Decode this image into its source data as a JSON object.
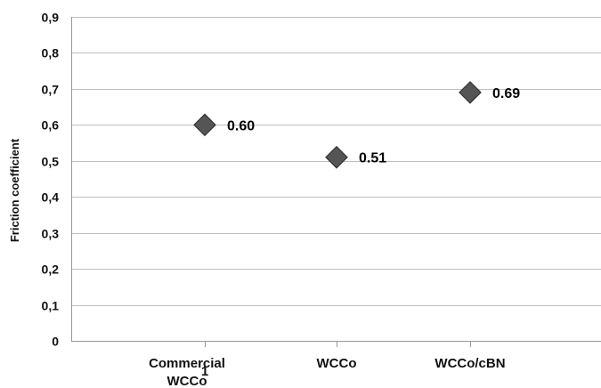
{
  "chart_data": {
    "type": "scatter",
    "title": "",
    "xlabel": "",
    "ylabel": "Friction coefficient",
    "categories": [
      "Commercial WCCo",
      "WCCo",
      "WCCo/cBN"
    ],
    "category_lines": [
      [
        "Commercial",
        "WCCo"
      ],
      [
        "WCCo"
      ],
      [
        "WCCo/cBN"
      ]
    ],
    "values": [
      0.6,
      0.51,
      0.69
    ],
    "data_labels": [
      "0.60",
      "0.51",
      "0.69"
    ],
    "stray_tick_label": "1",
    "ylim": [
      0,
      0.9
    ],
    "y_ticks": [
      0,
      0.1,
      0.2,
      0.3,
      0.4,
      0.5,
      0.6,
      0.7,
      0.8,
      0.9
    ],
    "y_tick_labels": [
      "0",
      "0,1",
      "0,2",
      "0,3",
      "0,4",
      "0,5",
      "0,6",
      "0,7",
      "0,8",
      "0,9"
    ],
    "grid": true,
    "legend": "none",
    "marker": "diamond",
    "colors": {
      "marker_fill": "#555555",
      "marker_stroke": "#333333",
      "gridline": "#bfbfbf",
      "axis": "#999999",
      "text": "#111111"
    }
  }
}
